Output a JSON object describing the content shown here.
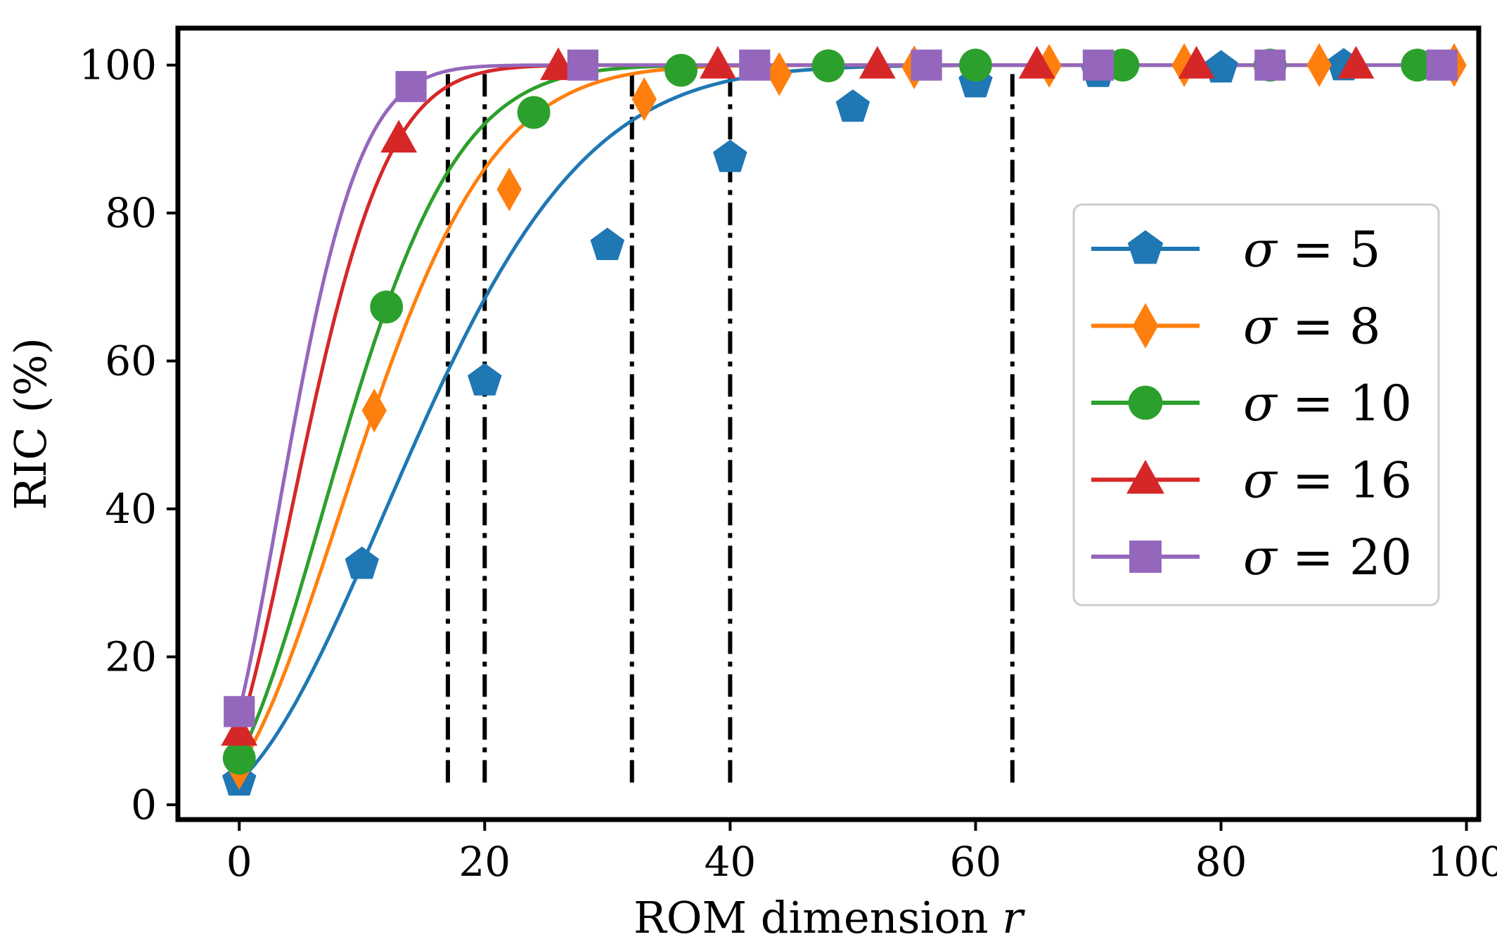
{
  "chart_data": {
    "type": "line",
    "title": "",
    "xlabel": "ROM dimension ",
    "xlabel_var": "r",
    "ylabel": "RIC (%)",
    "xlim": [
      -5,
      101
    ],
    "ylim": [
      -2,
      105
    ],
    "xticks": [
      0,
      20,
      40,
      60,
      80,
      100
    ],
    "yticks": [
      0,
      20,
      40,
      60,
      80,
      100
    ],
    "grid": false,
    "legend_position": "center-right",
    "vertical_lines": {
      "style": "dash-dot",
      "color": "#000000",
      "x": [
        17,
        20,
        32,
        40,
        63
      ],
      "y_range": [
        3,
        99
      ]
    },
    "series": [
      {
        "name": "σ = 5",
        "legend_symbol": "σ",
        "legend_value": "= 5",
        "color": "#1f77b4",
        "marker": "pentagon",
        "x": [
          0,
          10,
          20,
          30,
          40,
          50,
          60,
          70,
          80,
          90
        ],
        "values": [
          3.2,
          32.5,
          57.3,
          75.6,
          87.5,
          94.3,
          97.6,
          99.0,
          99.6,
          99.9
        ]
      },
      {
        "name": "σ = 8",
        "legend_symbol": "σ",
        "legend_value": "= 8",
        "color": "#ff7f0e",
        "marker": "diamond",
        "x": [
          0,
          11,
          22,
          33,
          44,
          55,
          66,
          77,
          88,
          99
        ],
        "values": [
          5.0,
          53.3,
          83.2,
          95.4,
          98.8,
          99.7,
          99.9,
          100.0,
          100.0,
          100.0
        ]
      },
      {
        "name": "σ = 10",
        "legend_symbol": "σ",
        "legend_value": "= 10",
        "color": "#2ca02c",
        "marker": "circle",
        "x": [
          0,
          12,
          24,
          36,
          48,
          60,
          72,
          84,
          96
        ],
        "values": [
          6.3,
          67.3,
          93.6,
          99.3,
          99.9,
          100.0,
          100.0,
          100.0,
          100.0
        ]
      },
      {
        "name": "σ = 16",
        "legend_symbol": "σ",
        "legend_value": "= 16",
        "color": "#d62728",
        "marker": "triangle",
        "x": [
          0,
          13,
          26,
          39,
          52,
          65,
          78,
          91
        ],
        "values": [
          9.8,
          90.0,
          99.8,
          100.0,
          100.0,
          100.0,
          100.0,
          100.0
        ]
      },
      {
        "name": "σ = 20",
        "legend_symbol": "σ",
        "legend_value": "= 20",
        "color": "#9467bd",
        "marker": "square",
        "x": [
          0,
          14,
          28,
          42,
          56,
          70,
          84,
          98
        ],
        "values": [
          12.6,
          97.1,
          100.0,
          100.0,
          100.0,
          100.0,
          100.0,
          100.0
        ]
      }
    ]
  }
}
